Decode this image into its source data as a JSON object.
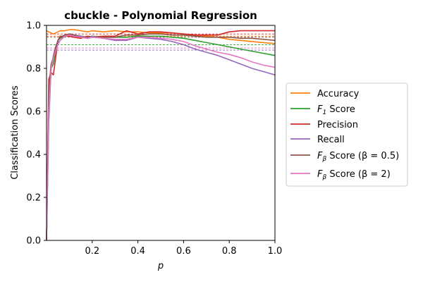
{
  "chart_data": {
    "type": "line",
    "title": "cbuckle - Polynomial Regression",
    "xlabel": "p",
    "ylabel": "Classification Scores",
    "xlim": [
      0.0,
      1.0
    ],
    "ylim": [
      0.0,
      1.0
    ],
    "xticks": [
      "0.2",
      "0.4",
      "0.6",
      "0.8",
      "1.0"
    ],
    "yticks": [
      "0.0",
      "0.2",
      "0.4",
      "0.6",
      "0.8",
      "1.0"
    ],
    "legend_position": "right-outside",
    "grid": false,
    "x": [
      0.0,
      0.01,
      0.02,
      0.03,
      0.04,
      0.05,
      0.06,
      0.08,
      0.1,
      0.12,
      0.15,
      0.18,
      0.2,
      0.25,
      0.3,
      0.35,
      0.4,
      0.45,
      0.5,
      0.55,
      0.6,
      0.65,
      0.7,
      0.75,
      0.8,
      0.85,
      0.9,
      0.95,
      1.0
    ],
    "series": [
      {
        "name": "Accuracy",
        "color": "#ff7f0e",
        "mean": 0.95,
        "values": [
          0.975,
          0.97,
          0.965,
          0.96,
          0.965,
          0.97,
          0.975,
          0.975,
          0.98,
          0.98,
          0.975,
          0.97,
          0.975,
          0.97,
          0.975,
          0.97,
          0.97,
          0.965,
          0.965,
          0.965,
          0.96,
          0.955,
          0.95,
          0.945,
          0.935,
          0.93,
          0.925,
          0.92,
          0.915
        ]
      },
      {
        "name": "F1 Score",
        "label_main": "F",
        "label_sub": "1",
        "label_rest": " Score",
        "color": "#2ca02c",
        "mean": 0.91,
        "values": [
          0.0,
          0.6,
          0.8,
          0.82,
          0.88,
          0.93,
          0.94,
          0.95,
          0.96,
          0.955,
          0.95,
          0.945,
          0.95,
          0.945,
          0.945,
          0.945,
          0.95,
          0.95,
          0.95,
          0.945,
          0.94,
          0.93,
          0.92,
          0.91,
          0.9,
          0.89,
          0.88,
          0.87,
          0.86
        ]
      },
      {
        "name": "Precision",
        "color": "#d62728",
        "mean": 0.96,
        "values": [
          0.0,
          0.75,
          0.78,
          0.77,
          0.85,
          0.93,
          0.95,
          0.95,
          0.95,
          0.945,
          0.94,
          0.95,
          0.945,
          0.95,
          0.95,
          0.975,
          0.96,
          0.97,
          0.97,
          0.965,
          0.96,
          0.955,
          0.955,
          0.955,
          0.97,
          0.975,
          0.975,
          0.975,
          0.975
        ]
      },
      {
        "name": "Recall",
        "color": "#9467bd",
        "mean": 0.885,
        "values": [
          0.0,
          0.55,
          0.8,
          0.86,
          0.9,
          0.92,
          0.93,
          0.95,
          0.96,
          0.955,
          0.95,
          0.94,
          0.95,
          0.94,
          0.93,
          0.93,
          0.945,
          0.94,
          0.935,
          0.925,
          0.91,
          0.89,
          0.875,
          0.86,
          0.84,
          0.82,
          0.8,
          0.785,
          0.77
        ]
      },
      {
        "name": "F_beta Score (beta=0.5)",
        "label_main": "F",
        "label_sub": "β",
        "label_rest": " Score (β = 0.5)",
        "color": "#8c564b",
        "mean": 0.945,
        "values": [
          0.0,
          0.7,
          0.82,
          0.85,
          0.9,
          0.93,
          0.945,
          0.955,
          0.96,
          0.955,
          0.945,
          0.94,
          0.945,
          0.945,
          0.945,
          0.955,
          0.955,
          0.96,
          0.96,
          0.955,
          0.955,
          0.95,
          0.945,
          0.945,
          0.945,
          0.94,
          0.94,
          0.935,
          0.93
        ]
      },
      {
        "name": "F_beta Score (beta=2)",
        "label_main": "F",
        "label_sub": "β",
        "label_rest": " Score (β = 2)",
        "color": "#e377c2",
        "mean": 0.895,
        "values": [
          0.0,
          0.6,
          0.8,
          0.85,
          0.88,
          0.91,
          0.93,
          0.95,
          0.955,
          0.95,
          0.945,
          0.94,
          0.945,
          0.94,
          0.935,
          0.935,
          0.945,
          0.945,
          0.94,
          0.935,
          0.925,
          0.905,
          0.89,
          0.875,
          0.865,
          0.85,
          0.83,
          0.815,
          0.805
        ]
      }
    ]
  }
}
